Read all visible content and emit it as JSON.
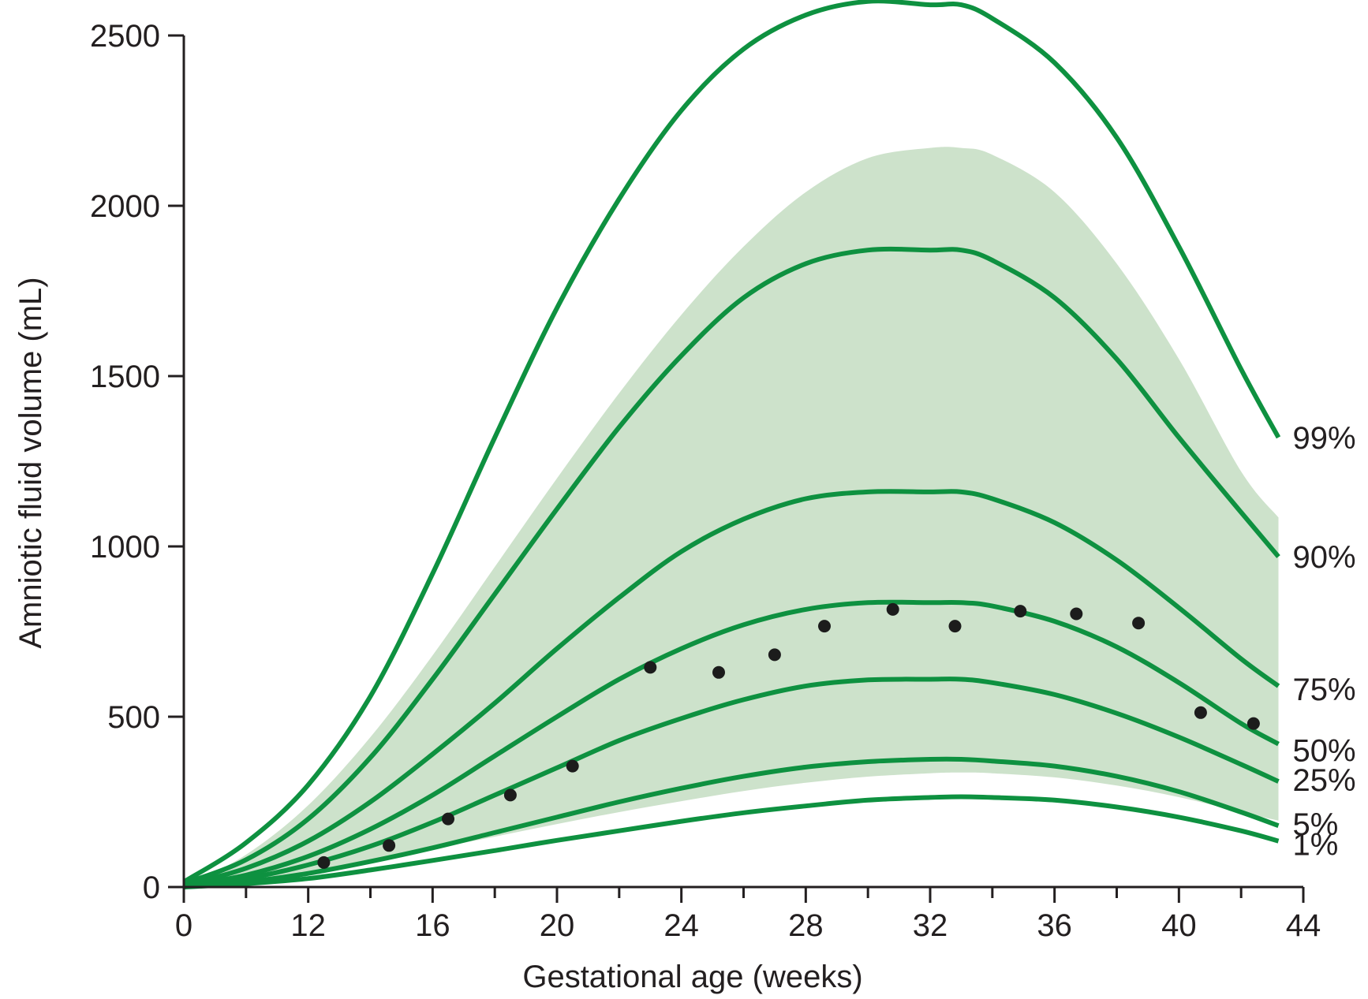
{
  "chart_data": {
    "type": "line",
    "title": "",
    "xlabel": "Gestational age (weeks)",
    "ylabel": "Amniotic fluid volume (mL)",
    "x_axis_break": {
      "origin_label": "0",
      "break_at": 8
    },
    "xlim": [
      8,
      44
    ],
    "ylim": [
      0,
      2500
    ],
    "x_ticks": [
      12,
      16,
      20,
      24,
      28,
      32,
      36,
      40,
      44
    ],
    "x_tick_labels": [
      "0",
      "12",
      "16",
      "20",
      "24",
      "28",
      "32",
      "36",
      "40",
      "44"
    ],
    "x_minor_ticks": [
      10,
      14,
      18,
      22,
      26,
      30,
      34,
      38,
      42
    ],
    "y_ticks": [
      0,
      500,
      1000,
      1500,
      2000,
      2500
    ],
    "y_tick_labels": [
      "0",
      "500",
      "1000",
      "1500",
      "2000",
      "2500"
    ],
    "grid": false,
    "shaded_band": {
      "description": "green shaded region",
      "x": [
        8,
        10,
        12,
        14,
        16,
        18,
        20,
        22,
        24,
        26,
        28,
        30,
        32,
        33,
        34,
        36,
        38,
        40,
        42,
        43.2
      ],
      "lower": [
        0,
        18,
        45,
        78,
        112,
        148,
        185,
        220,
        252,
        282,
        306,
        324,
        334,
        336,
        334,
        322,
        298,
        264,
        220,
        195
      ],
      "upper": [
        0,
        95,
        240,
        440,
        680,
        940,
        1200,
        1450,
        1680,
        1880,
        2040,
        2140,
        2170,
        2170,
        2150,
        2040,
        1830,
        1550,
        1220,
        1085
      ]
    },
    "series": [
      {
        "name": "99%",
        "x": [
          8,
          10,
          12,
          14,
          16,
          18,
          20,
          22,
          24,
          26,
          28,
          30,
          32,
          33,
          34,
          36,
          38,
          40,
          42,
          43.2
        ],
        "values": [
          15,
          130,
          300,
          560,
          920,
          1320,
          1700,
          2020,
          2280,
          2460,
          2560,
          2600,
          2590,
          2590,
          2550,
          2420,
          2200,
          1880,
          1520,
          1320
        ]
      },
      {
        "name": "90%",
        "x": [
          8,
          10,
          12,
          14,
          16,
          18,
          20,
          22,
          24,
          26,
          28,
          30,
          32,
          33,
          34,
          36,
          38,
          40,
          42,
          43.2
        ],
        "values": [
          10,
          80,
          200,
          380,
          610,
          860,
          1110,
          1350,
          1560,
          1730,
          1830,
          1870,
          1870,
          1870,
          1840,
          1730,
          1550,
          1320,
          1100,
          970
        ]
      },
      {
        "name": "75%",
        "x": [
          8,
          10,
          12,
          14,
          16,
          18,
          20,
          22,
          24,
          26,
          28,
          30,
          32,
          33,
          34,
          36,
          38,
          40,
          42,
          43.2
        ],
        "values": [
          5,
          55,
          135,
          250,
          390,
          540,
          700,
          850,
          985,
          1080,
          1140,
          1160,
          1160,
          1160,
          1140,
          1070,
          960,
          820,
          670,
          590
        ]
      },
      {
        "name": "50%",
        "x": [
          8,
          10,
          12,
          14,
          16,
          18,
          20,
          22,
          24,
          26,
          28,
          30,
          32,
          33,
          34,
          36,
          38,
          40,
          42,
          43.2
        ],
        "values": [
          3,
          35,
          90,
          170,
          270,
          385,
          500,
          610,
          700,
          770,
          815,
          835,
          835,
          835,
          825,
          780,
          705,
          600,
          480,
          420
        ]
      },
      {
        "name": "25%",
        "x": [
          8,
          10,
          12,
          14,
          16,
          18,
          20,
          22,
          24,
          26,
          28,
          30,
          32,
          33,
          34,
          36,
          38,
          40,
          42,
          43.2
        ],
        "values": [
          2,
          25,
          65,
          120,
          190,
          270,
          350,
          430,
          495,
          550,
          590,
          608,
          610,
          610,
          600,
          565,
          510,
          440,
          360,
          310
        ]
      },
      {
        "name": "5%",
        "x": [
          8,
          10,
          12,
          14,
          16,
          18,
          20,
          22,
          24,
          26,
          28,
          30,
          32,
          33,
          34,
          36,
          38,
          40,
          42,
          43.2
        ],
        "values": [
          1,
          15,
          40,
          75,
          115,
          160,
          205,
          250,
          290,
          325,
          352,
          368,
          375,
          375,
          370,
          355,
          325,
          280,
          220,
          180
        ]
      },
      {
        "name": "1%",
        "x": [
          8,
          10,
          12,
          14,
          16,
          18,
          20,
          22,
          24,
          26,
          28,
          30,
          32,
          33,
          34,
          36,
          38,
          40,
          42,
          43.2
        ],
        "values": [
          0,
          10,
          25,
          50,
          78,
          107,
          137,
          165,
          193,
          218,
          238,
          255,
          263,
          265,
          263,
          255,
          235,
          205,
          165,
          135
        ]
      }
    ],
    "points": {
      "x": [
        12.5,
        14.6,
        16.5,
        18.5,
        20.5,
        23,
        25.2,
        27,
        28.6,
        30.8,
        32.8,
        34.9,
        36.7,
        38.7,
        40.7,
        42.4
      ],
      "y": [
        72,
        122,
        200,
        270,
        355,
        645,
        630,
        682,
        766,
        815,
        766,
        810,
        802,
        775,
        512,
        480
      ]
    }
  },
  "colors": {
    "line": "#0e9140",
    "band": "#cde2cb",
    "axis": "#231f20",
    "point": "#1c1c1c"
  }
}
